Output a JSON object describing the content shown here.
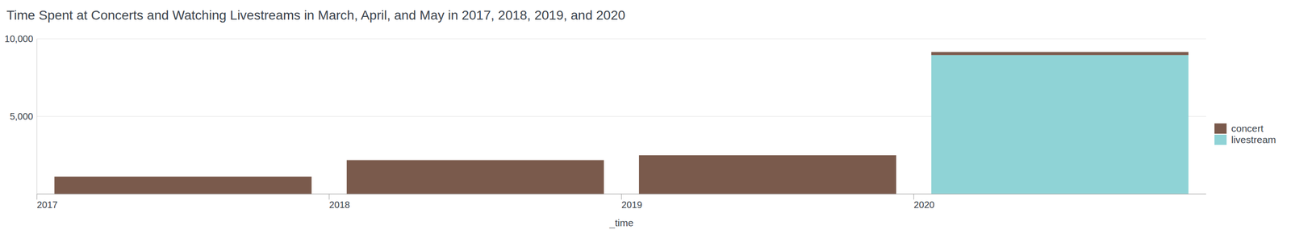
{
  "chart_data": {
    "type": "bar",
    "title": "Time Spent at Concerts and Watching Livestreams in March, April, and May in 2017, 2018, 2019, and 2020",
    "x_label": "_time",
    "categories": [
      "2017",
      "2018",
      "2019",
      "2020"
    ],
    "series": [
      {
        "name": "concert",
        "color": "#7a5a4c",
        "values": [
          1120,
          2180,
          2500,
          200
        ]
      },
      {
        "name": "livestream",
        "color": "#8fd3d6",
        "values": [
          0,
          0,
          0,
          8950
        ]
      }
    ],
    "stacked": true,
    "ylim": [
      0,
      10000
    ],
    "yticks": [
      {
        "value": 5000,
        "label": "5,000"
      },
      {
        "value": 10000,
        "label": "10,000"
      }
    ],
    "grid": true,
    "legend": "right"
  }
}
